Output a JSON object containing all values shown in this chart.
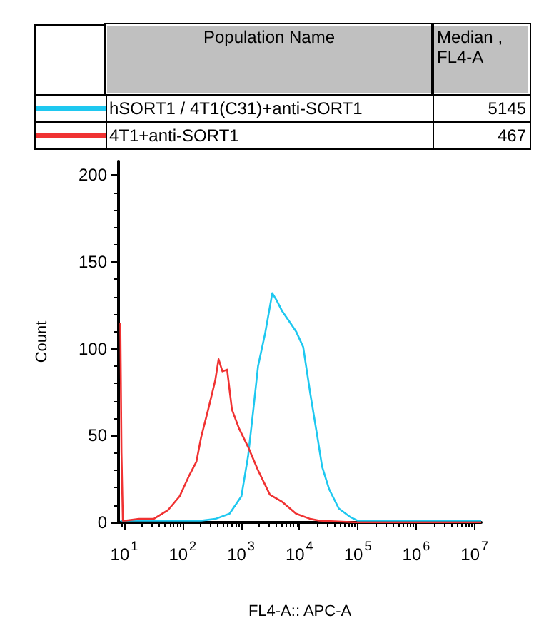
{
  "chart_data": {
    "type": "line",
    "xlabel": "FL4-A:: APC-A",
    "ylabel": "Count",
    "legend_title": "Population Name",
    "legend": "top",
    "annotations": [
      "Median , FL4-A",
      "5145",
      "467"
    ],
    "log": "x",
    "xlim": [
      8,
      13000000
    ],
    "xticks": [
      {
        "value": 10,
        "label": "10$^{1}$"
      },
      {
        "value": 100,
        "label": "10$^{2}$"
      },
      {
        "value": 1000,
        "label": "10$^{3}$"
      },
      {
        "value": 10000,
        "label": "10$^{4}$"
      },
      {
        "value": 100000,
        "label": "10$^{5}$"
      },
      {
        "value": 1000000,
        "label": "10$^{6}$"
      },
      {
        "value": 10000000,
        "label": "10$^{7}$"
      }
    ],
    "ylim": [
      0,
      208
    ],
    "yticks": [
      0,
      50,
      100,
      150,
      200
    ],
    "grid": false,
    "marker": "none",
    "line_style": "solid",
    "series": [
      {
        "name": "hSORT1 / 4T1(C31)+anti-SORT1",
        "color": "#1ec8f0",
        "x": [
          8.6,
          208,
          364,
          638,
          1017,
          1324,
          1630,
          1962,
          2600,
          3440,
          4070,
          5010,
          6640,
          8790,
          11640,
          15420,
          20420,
          24560,
          32500,
          47400,
          75500,
          100000,
          13000000
        ],
        "values": [
          1,
          1,
          2,
          5,
          15,
          38,
          65,
          90,
          109,
          132,
          128,
          122,
          116,
          110,
          101,
          74,
          49,
          32,
          19,
          8,
          3,
          1,
          1
        ]
      },
      {
        "name": "4T1+anti-SORT1",
        "color": "#f03232",
        "x": [
          8.6,
          9,
          9.5,
          10.4,
          18,
          32,
          56,
          89,
          130,
          173,
          208,
          275,
          364,
          414,
          482,
          580,
          701,
          930,
          1346,
          1962,
          3129,
          5012,
          8790,
          15420,
          21900,
          100000,
          13000000
        ],
        "values": [
          115,
          40,
          1,
          1,
          2,
          2,
          7,
          15,
          27,
          35,
          49,
          65,
          82,
          94,
          87,
          88,
          65,
          54,
          43,
          30,
          16,
          12,
          5,
          2,
          1,
          0,
          0
        ]
      }
    ]
  }
}
